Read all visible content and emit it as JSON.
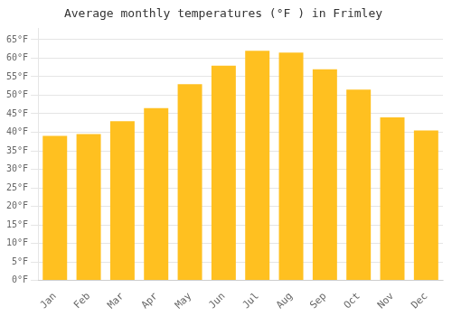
{
  "chart_data": {
    "type": "bar",
    "title": "Average monthly temperatures (°F ) in Frimley",
    "categories": [
      "Jan",
      "Feb",
      "Mar",
      "Apr",
      "May",
      "Jun",
      "Jul",
      "Aug",
      "Sep",
      "Oct",
      "Nov",
      "Dec"
    ],
    "values": [
      39,
      39.5,
      43,
      46.5,
      53,
      58,
      62,
      61.5,
      57,
      51.5,
      44,
      40.5
    ],
    "color": "#FFC020",
    "ylim": [
      0,
      68
    ],
    "yticks": [
      {
        "value": 0,
        "label": "0°F"
      },
      {
        "value": 5,
        "label": "5°F"
      },
      {
        "value": 10,
        "label": "10°F"
      },
      {
        "value": 15,
        "label": "15°F"
      },
      {
        "value": 20,
        "label": "20°F"
      },
      {
        "value": 25,
        "label": "25°F"
      },
      {
        "value": 30,
        "label": "30°F"
      },
      {
        "value": 35,
        "label": "35°F"
      },
      {
        "value": 40,
        "label": "40°F"
      },
      {
        "value": 45,
        "label": "45°F"
      },
      {
        "value": 50,
        "label": "50°F"
      },
      {
        "value": 55,
        "label": "55°F"
      },
      {
        "value": 60,
        "label": "60°F"
      },
      {
        "value": 65,
        "label": "65°F"
      }
    ],
    "grid": true
  }
}
